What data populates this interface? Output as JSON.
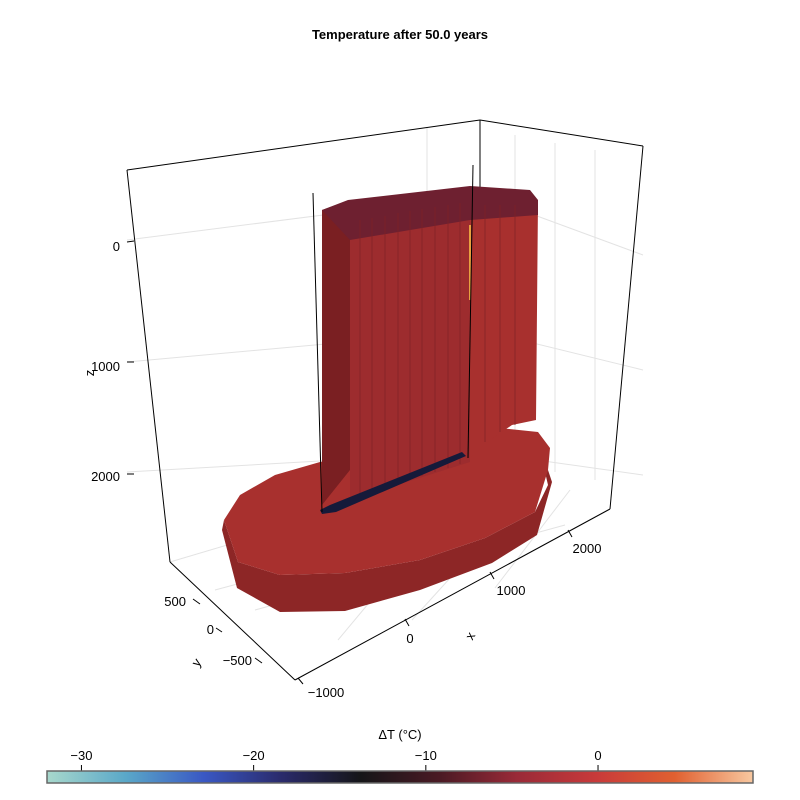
{
  "chart_data": {
    "type": "3d-volume",
    "title": "Temperature after 50.0 years",
    "axes": {
      "x": {
        "label": "x",
        "ticks": [
          "−1000",
          "0",
          "1000",
          "2000"
        ]
      },
      "y": {
        "label": "y",
        "ticks": [
          "−500",
          "0",
          "500"
        ]
      },
      "z": {
        "label": "z",
        "ticks": [
          "0",
          "1000",
          "2000"
        ],
        "reversed": true
      }
    },
    "grid": true,
    "colorbar": {
      "label": "ΔT (°C)",
      "ticks": [
        "−30",
        "−20",
        "−10",
        "0"
      ],
      "tick_values": [
        -30,
        -20,
        -10,
        0
      ],
      "range": [
        -32,
        9
      ],
      "colormap": [
        "#a8d8cc",
        "#5aa8c8",
        "#3a58c4",
        "#2a2a6a",
        "#151518",
        "#4a1a24",
        "#9a2a38",
        "#c83a3a",
        "#e06030",
        "#f8c8a0"
      ]
    },
    "volume_color": "#a8302e",
    "anomaly_color": "#151a3a"
  }
}
